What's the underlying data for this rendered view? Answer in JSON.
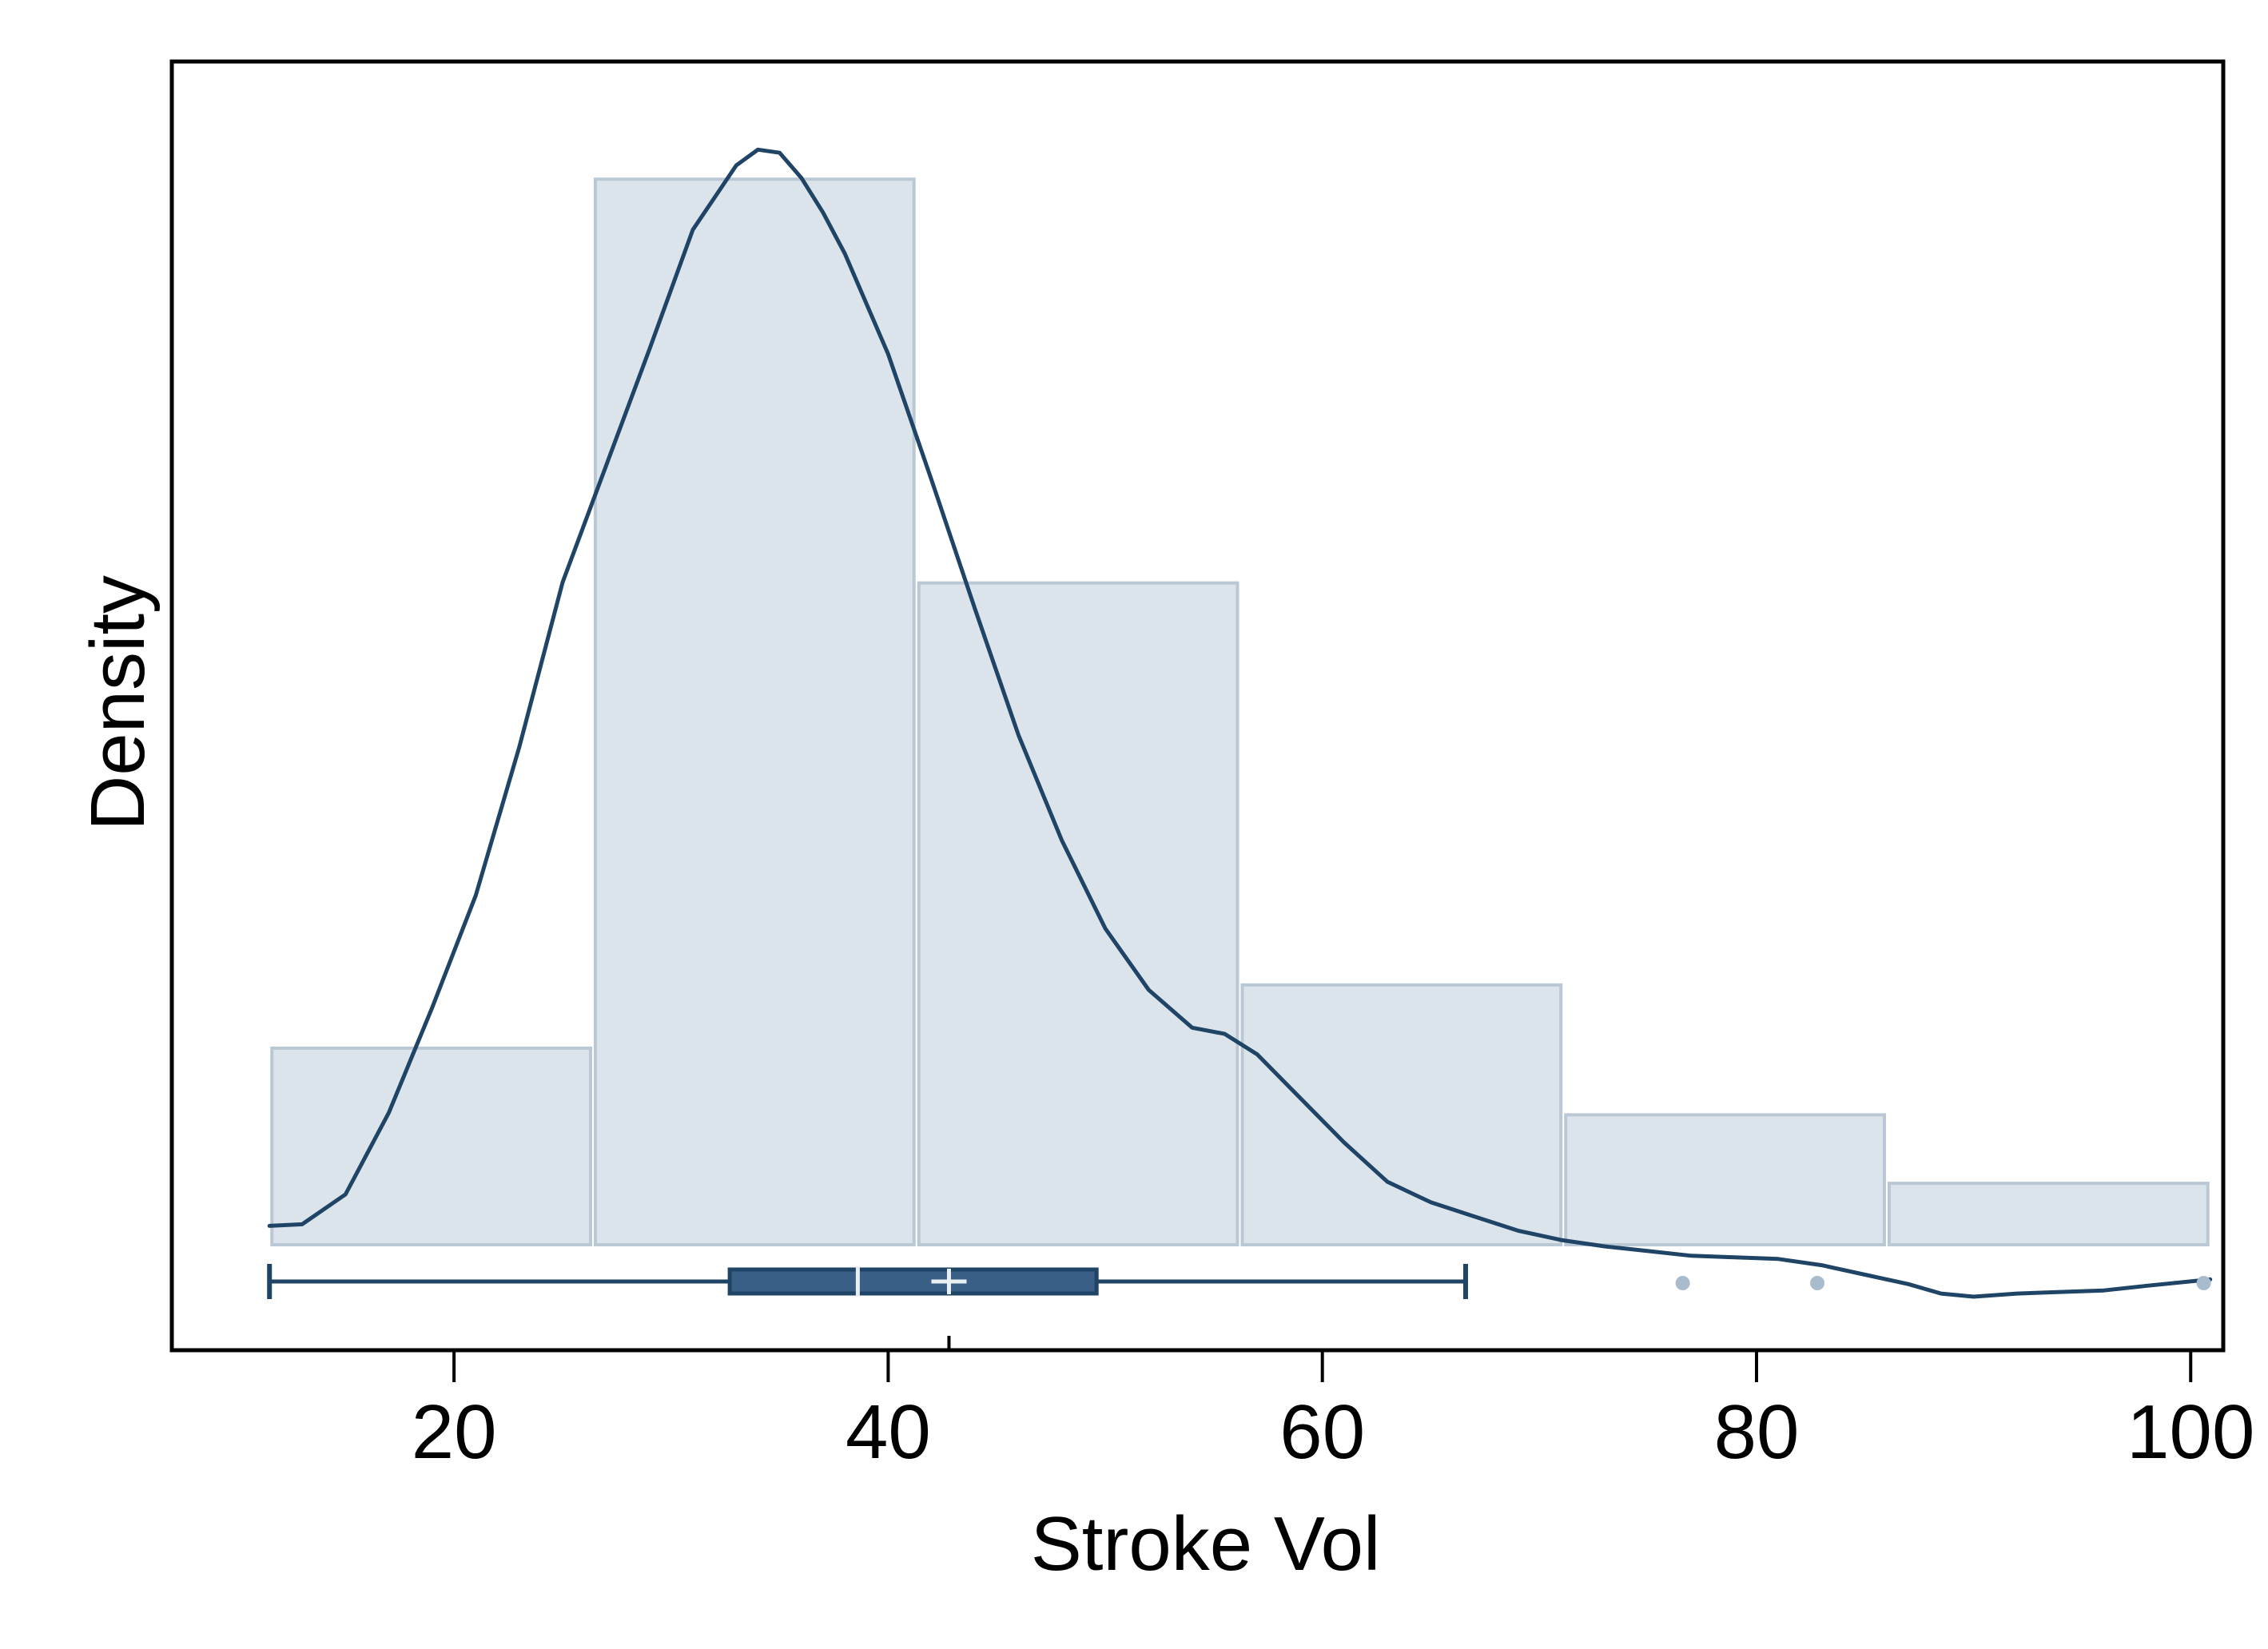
{
  "colors": {
    "background": "#ffffff",
    "frame": "#000000",
    "bar_fill": "#dce4eb",
    "bar_stroke": "#b9c8d4",
    "curve": "#1f4466",
    "box_fill": "#3a5f86",
    "box_stroke": "#1f4466",
    "median_line": "#e9eef3",
    "outlier": "#a9bccd"
  },
  "chart_data": {
    "type": "histogram",
    "xlabel": "Stroke Vol",
    "ylabel": "Density",
    "xlim": [
      7,
      101.5
    ],
    "x_ticks": [
      20,
      40,
      60,
      80,
      100
    ],
    "y_ticks": [],
    "grid": false,
    "legend": "none",
    "histogram": {
      "bin_edges": [
        11.5,
        26.4,
        41.3,
        56.2,
        71.1,
        86.0,
        100.9
      ],
      "density": [
        0.0112,
        0.0607,
        0.0377,
        0.0148,
        0.0074,
        0.0035
      ],
      "ylim": [
        0,
        0.0644
      ]
    },
    "kde": {
      "x": [
        11.5,
        13,
        15,
        17,
        19,
        21,
        23,
        25,
        27,
        29,
        31,
        33,
        34,
        35,
        36,
        37,
        38,
        40,
        42,
        44,
        46,
        48,
        50,
        52,
        54,
        55.5,
        57,
        59,
        61,
        63,
        65,
        67,
        69,
        71,
        73,
        75,
        77,
        79,
        81,
        83,
        85,
        87,
        88.5,
        90,
        92,
        94,
        96,
        98,
        100.9
      ],
      "y": [
        0.0034,
        0.0035,
        0.0054,
        0.0106,
        0.0173,
        0.0244,
        0.0338,
        0.0443,
        0.0517,
        0.0591,
        0.0667,
        0.0708,
        0.0718,
        0.0716,
        0.07,
        0.0678,
        0.0652,
        0.0588,
        0.0508,
        0.0426,
        0.0346,
        0.0279,
        0.0223,
        0.0184,
        0.016,
        0.0156,
        0.0143,
        0.0115,
        0.0087,
        0.0062,
        0.0049,
        0.004,
        0.0031,
        0.0025,
        0.0021,
        0.0018,
        0.0015,
        0.0014,
        0.0013,
        0.0009,
        0.0003,
        -0.0003,
        -0.0009,
        -0.0011,
        -0.0009,
        -0.0008,
        -0.0007,
        -0.0004,
        0.0
      ],
      "ylim": [
        -0.0045,
        0.0774
      ]
    },
    "boxplot": {
      "whisker_low": 11.5,
      "q1": 32.7,
      "median": 38.6,
      "mean": 42.8,
      "q3": 49.6,
      "whisker_high": 66.6,
      "outliers": [
        76.6,
        82.8,
        100.6
      ]
    }
  }
}
